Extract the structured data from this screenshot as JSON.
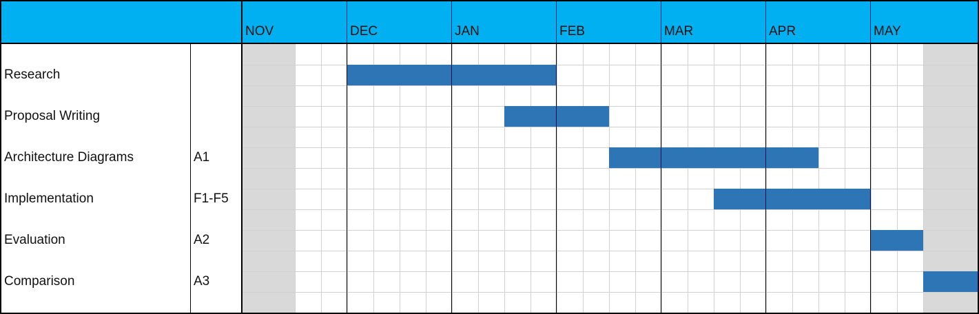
{
  "chart_data": {
    "type": "gantt",
    "months": [
      "NOV",
      "DEC",
      "JAN",
      "FEB",
      "MAR",
      "APR",
      "MAY"
    ],
    "tasks": [
      {
        "name": "Research",
        "code": "",
        "start": 1.0,
        "end": 3.0
      },
      {
        "name": "Proposal Writing",
        "code": "",
        "start": 2.5,
        "end": 3.5
      },
      {
        "name": "Architecture Diagrams",
        "code": "A1",
        "start": 3.5,
        "end": 5.5
      },
      {
        "name": "Implementation",
        "code": "F1-F5",
        "start": 4.5,
        "end": 6.0
      },
      {
        "name": "Evaluation",
        "code": "A2",
        "start": 6.0,
        "end": 6.5
      },
      {
        "name": "Comparison",
        "code": "A3",
        "start": 6.5,
        "end": 7.5
      }
    ],
    "colors": {
      "header": "#00b0f0",
      "bar": "#2e75b6",
      "shade": "#d9d9d9",
      "grid": "#d0d0d0"
    }
  }
}
